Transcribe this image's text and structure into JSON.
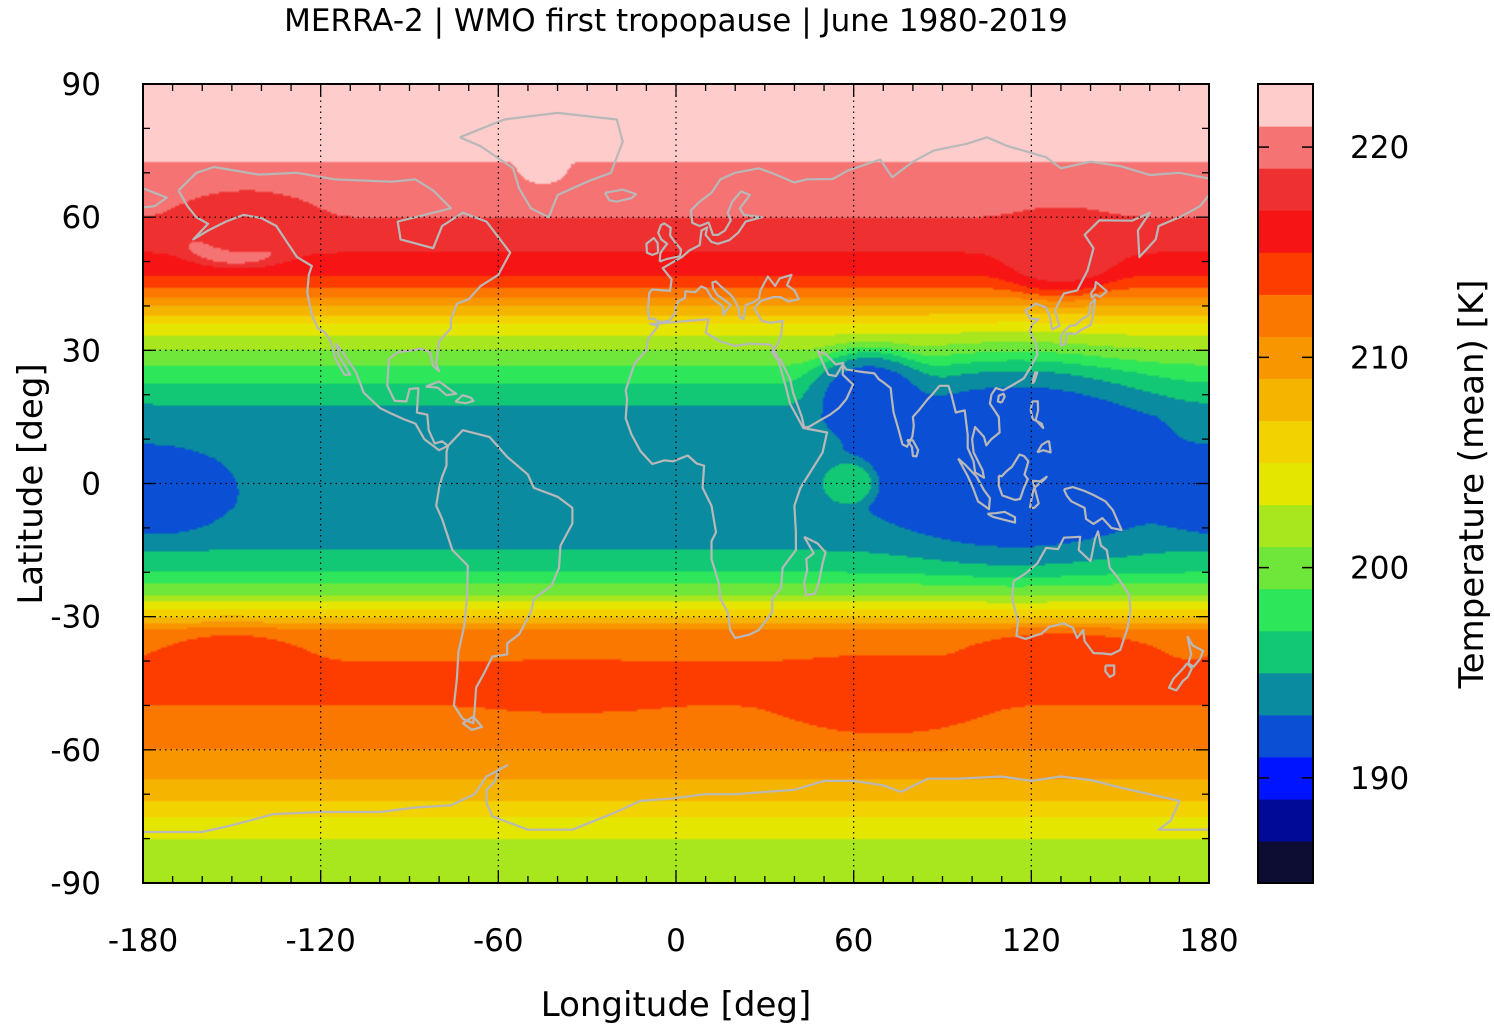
{
  "chart_data": {
    "type": "heatmap",
    "title": "MERRA-2 | WMO first tropopause | June 1980-2019",
    "xlabel": "Longitude [deg]",
    "ylabel": "Latitude [deg]",
    "colorbar_label": "Temperature (mean) [K]",
    "xlim": [
      -180,
      180
    ],
    "ylim": [
      -90,
      90
    ],
    "xticks": [
      -180,
      -120,
      -60,
      0,
      60,
      120,
      180
    ],
    "yticks": [
      90,
      60,
      30,
      0,
      -30,
      -60,
      -90
    ],
    "x_tick_labels": [
      "-180",
      "-120",
      "-60",
      "0",
      "60",
      "120",
      "180"
    ],
    "y_tick_labels": [
      "90",
      "60",
      "30",
      "0",
      "-30",
      "-60",
      "-90"
    ],
    "grid": true,
    "overlay": "coastlines",
    "colorbar": {
      "range": [
        185,
        223
      ],
      "ticks": [
        190,
        200,
        210,
        220
      ],
      "tick_labels": [
        "190",
        "200",
        "210",
        "220"
      ],
      "levels": [
        {
          "from": 185,
          "to": 187,
          "color": "#0d0d33"
        },
        {
          "from": 187,
          "to": 189,
          "color": "#000a96"
        },
        {
          "from": 189,
          "to": 191,
          "color": "#0014ff"
        },
        {
          "from": 191,
          "to": 193,
          "color": "#0b4fd4"
        },
        {
          "from": 193,
          "to": 195,
          "color": "#0a8ba0"
        },
        {
          "from": 195,
          "to": 197,
          "color": "#12c874"
        },
        {
          "from": 197,
          "to": 199,
          "color": "#2ee65a"
        },
        {
          "from": 199,
          "to": 201,
          "color": "#6ee63a"
        },
        {
          "from": 201,
          "to": 203,
          "color": "#a8e61e"
        },
        {
          "from": 203,
          "to": 205,
          "color": "#e4e600"
        },
        {
          "from": 205,
          "to": 207,
          "color": "#f2d200"
        },
        {
          "from": 207,
          "to": 209,
          "color": "#f5b400"
        },
        {
          "from": 209,
          "to": 211,
          "color": "#f89600"
        },
        {
          "from": 211,
          "to": 213,
          "color": "#fb7800"
        },
        {
          "from": 213,
          "to": 215,
          "color": "#fd3c00"
        },
        {
          "from": 215,
          "to": 217,
          "color": "#f71414"
        },
        {
          "from": 217,
          "to": 219,
          "color": "#ee3030"
        },
        {
          "from": 219,
          "to": 221,
          "color": "#f57373"
        },
        {
          "from": 221,
          "to": 223,
          "color": "#ffcccc"
        }
      ]
    },
    "temperature_field_by_latitude": [
      {
        "lat": 90,
        "temp": 222
      },
      {
        "lat": 75,
        "temp": 222
      },
      {
        "lat": 70,
        "temp": 220
      },
      {
        "lat": 60,
        "temp": 219
      },
      {
        "lat": 52,
        "temp": 217
      },
      {
        "lat": 47,
        "temp": 215
      },
      {
        "lat": 44,
        "temp": 213
      },
      {
        "lat": 40,
        "temp": 209
      },
      {
        "lat": 35,
        "temp": 204
      },
      {
        "lat": 30,
        "temp": 201
      },
      {
        "lat": 25,
        "temp": 198
      },
      {
        "lat": 20,
        "temp": 196
      },
      {
        "lat": 15,
        "temp": 194
      },
      {
        "lat": 5,
        "temp": 193.5
      },
      {
        "lat": 0,
        "temp": 193.5
      },
      {
        "lat": -5,
        "temp": 193.5
      },
      {
        "lat": -10,
        "temp": 194
      },
      {
        "lat": -15,
        "temp": 195
      },
      {
        "lat": -20,
        "temp": 197
      },
      {
        "lat": -25,
        "temp": 201
      },
      {
        "lat": -30,
        "temp": 207
      },
      {
        "lat": -33,
        "temp": 211
      },
      {
        "lat": -40,
        "temp": 213
      },
      {
        "lat": -50,
        "temp": 213
      },
      {
        "lat": -57,
        "temp": 212
      },
      {
        "lat": -63,
        "temp": 210
      },
      {
        "lat": -70,
        "temp": 208
      },
      {
        "lat": -75,
        "temp": 205
      },
      {
        "lat": -80,
        "temp": 203
      },
      {
        "lat": -90,
        "temp": 201
      }
    ],
    "regional_features": [
      {
        "name": "Greenland warm spot",
        "lon": -45,
        "lat": 71,
        "dlon": 9,
        "dlat": 4,
        "temp": 222
      },
      {
        "name": "Alaska warm spot",
        "lon": -148,
        "lat": 54,
        "dlon": 18,
        "dlat": 5,
        "temp": 222
      },
      {
        "name": "Alaska ridge",
        "lon": -145,
        "lat": 58,
        "dlon": 24,
        "dlat": 8,
        "temp": 218
      },
      {
        "name": "Siberia ridge",
        "lon": 130,
        "lat": 52,
        "dlon": 22,
        "dlat": 9,
        "temp": 218
      },
      {
        "name": "Asian cold anomaly",
        "lon": 115,
        "lat": 5,
        "dlon": 55,
        "dlat": 22,
        "temp": 191.5
      },
      {
        "name": "Arabian cold anomaly",
        "lon": 65,
        "lat": 20,
        "dlon": 20,
        "dlat": 10,
        "temp": 192
      },
      {
        "name": "Indian Ocean warm spot",
        "lon": 58,
        "lat": 0,
        "dlon": 9,
        "dlat": 5,
        "temp": 197
      },
      {
        "name": "Central Pacific cold anomaly",
        "lon": -175,
        "lat": -2,
        "dlon": 25,
        "dlat": 10,
        "temp": 191.5
      },
      {
        "name": "South Pacific warm band",
        "lon": -150,
        "lat": -40,
        "dlon": 28,
        "dlat": 7,
        "temp": 214
      },
      {
        "name": "South Atlantic warm band",
        "lon": -35,
        "lat": -46,
        "dlon": 35,
        "dlat": 5,
        "temp": 214
      },
      {
        "name": "Indian Ocean warm band",
        "lon": 70,
        "lat": -48,
        "dlon": 35,
        "dlat": 9,
        "temp": 214
      },
      {
        "name": "Australia warm band",
        "lon": 130,
        "lat": -38,
        "dlon": 35,
        "dlat": 5,
        "temp": 214
      }
    ]
  }
}
